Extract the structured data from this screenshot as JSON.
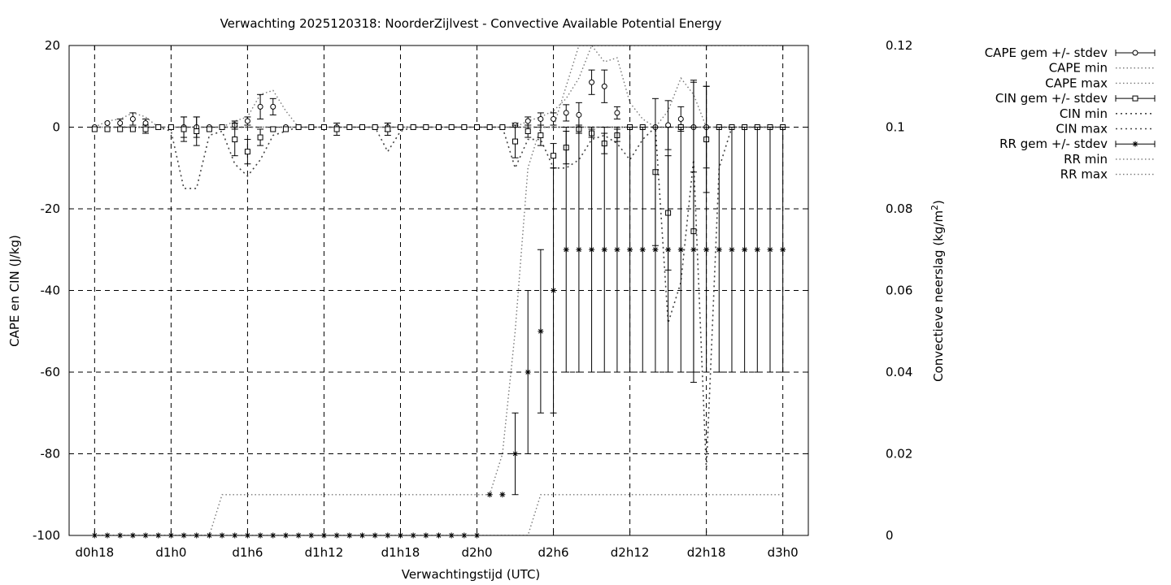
{
  "chart_data": {
    "type": "line",
    "title": "Verwachting 2025120318: NoorderZijlvest - Convective Available Potential Energy",
    "xlabel": "Verwachtingstijd (UTC)",
    "ylabel": "CAPE en CIN (J/kg)",
    "y2label_main": "Convectieve neerslag (kg/m",
    "y2label_sup": "2",
    "y2label_end": ")",
    "x_tick_labels": [
      "d0h18",
      "d1h0",
      "d1h6",
      "d1h12",
      "d1h18",
      "d2h0",
      "d2h6",
      "d2h12",
      "d2h18",
      "d3h0"
    ],
    "x_tick_hours": [
      18,
      24,
      30,
      36,
      42,
      48,
      54,
      60,
      66,
      72
    ],
    "xlim": [
      16,
      74
    ],
    "ylim": [
      -100,
      20
    ],
    "y_tick_labels": [
      "-100",
      "-80",
      "-60",
      "-40",
      "-20",
      "0",
      "20"
    ],
    "y2lim": [
      0,
      0.12
    ],
    "y2_tick_labels": [
      "0",
      "0.02",
      "0.04",
      "0.06",
      "0.08",
      "0.1",
      "0.12"
    ],
    "grid": true,
    "legend_position": "outside-right",
    "legend": [
      "CAPE gem +/- stdev",
      "CAPE min",
      "CAPE max",
      "CIN gem +/- stdev",
      "CIN min",
      "CIN max",
      "RR gem +/- stdev",
      "RR min",
      "RR max"
    ],
    "series": [
      {
        "name": "CAPE gem +/- stdev",
        "marker": "circle",
        "axis": "y1",
        "x": [
          18,
          19,
          20,
          21,
          22,
          23,
          24,
          25,
          26,
          27,
          28,
          29,
          30,
          31,
          32,
          33,
          34,
          35,
          36,
          37,
          38,
          39,
          40,
          41,
          42,
          43,
          44,
          45,
          46,
          47,
          48,
          49,
          50,
          51,
          52,
          53,
          54,
          55,
          56,
          57,
          58,
          59,
          60,
          61,
          62,
          63,
          64,
          65,
          66,
          67,
          68,
          69,
          70,
          71,
          72
        ],
        "mean": [
          0,
          1,
          1,
          2,
          1,
          0,
          0,
          0,
          0,
          0,
          0,
          0.5,
          1.5,
          5,
          5,
          0,
          0,
          0,
          0,
          0,
          0,
          0,
          0,
          0,
          0,
          0,
          0,
          0,
          0,
          0,
          0,
          0,
          0,
          0.5,
          1.5,
          2,
          2,
          3.5,
          3,
          11,
          10,
          3.5,
          0,
          0,
          0,
          0.5,
          2,
          0,
          0,
          0,
          0,
          0,
          0,
          0,
          0
        ],
        "stdev": [
          0,
          0,
          1,
          1.5,
          1,
          0,
          0,
          2.5,
          2.5,
          0,
          0,
          1,
          1,
          3,
          2,
          0,
          0,
          0,
          0,
          0,
          0,
          0,
          0,
          1,
          0,
          0,
          0,
          0,
          0,
          0,
          0,
          0,
          0,
          0.5,
          1,
          1.5,
          1.5,
          2,
          3,
          3,
          4,
          1.5,
          0,
          0,
          0,
          6,
          3,
          11,
          10,
          0,
          0,
          0,
          0,
          0,
          0
        ]
      },
      {
        "name": "CIN gem +/- stdev",
        "marker": "square",
        "axis": "y1",
        "x": [
          18,
          19,
          20,
          21,
          22,
          23,
          24,
          25,
          26,
          27,
          28,
          29,
          30,
          31,
          32,
          33,
          34,
          35,
          36,
          37,
          38,
          39,
          40,
          41,
          42,
          43,
          44,
          45,
          46,
          47,
          48,
          49,
          50,
          51,
          52,
          53,
          54,
          55,
          56,
          57,
          58,
          59,
          60,
          61,
          62,
          63,
          64,
          65,
          66,
          67,
          68,
          69,
          70,
          71,
          72
        ],
        "mean": [
          -0.5,
          -0.5,
          -0.5,
          -0.5,
          -0.5,
          0,
          0,
          -0.5,
          -1,
          -0.5,
          0,
          -3,
          -6,
          -2.5,
          -0.5,
          -0.5,
          0,
          0,
          0,
          -0.5,
          0,
          0,
          0,
          -0.5,
          0,
          0,
          0,
          0,
          0,
          0,
          0,
          0,
          0,
          -3.5,
          -1,
          -2,
          -7,
          -5,
          -0.5,
          -1.5,
          -4,
          -2,
          0,
          0,
          -11,
          -21,
          0,
          -25.5,
          -3,
          0,
          0,
          0,
          0,
          0,
          0
        ],
        "stdev": [
          0,
          0,
          0,
          0,
          1,
          0,
          0,
          3,
          3.5,
          0,
          0,
          4,
          3,
          2,
          0,
          0,
          0,
          0,
          0,
          1.5,
          0,
          0,
          0,
          1.5,
          0,
          0,
          0,
          0,
          0,
          0,
          0,
          0,
          0,
          4,
          1.5,
          2.5,
          3,
          4,
          1,
          1,
          2.5,
          1.5,
          0,
          0,
          18,
          14,
          0,
          37,
          13,
          0,
          0,
          0,
          0,
          0,
          0
        ]
      },
      {
        "name": "RR gem +/- stdev",
        "marker": "star",
        "axis": "y2",
        "x": [
          18,
          19,
          20,
          21,
          22,
          23,
          24,
          25,
          26,
          27,
          28,
          29,
          30,
          31,
          32,
          33,
          34,
          35,
          36,
          37,
          38,
          39,
          40,
          41,
          42,
          43,
          44,
          45,
          46,
          47,
          48,
          49,
          50,
          51,
          52,
          53,
          54,
          55,
          56,
          57,
          58,
          59,
          60,
          61,
          62,
          63,
          64,
          65,
          66,
          67,
          68,
          69,
          70,
          71,
          72
        ],
        "mean": [
          0,
          0,
          0,
          0,
          0,
          0,
          0,
          0,
          0,
          0,
          0,
          0,
          0,
          0,
          0,
          0,
          0,
          0,
          0,
          0,
          0,
          0,
          0,
          0,
          0,
          0,
          0,
          0,
          0,
          0,
          0,
          0.01,
          0.01,
          0.02,
          0.04,
          0.05,
          0.06,
          0.07,
          0.07,
          0.07,
          0.07,
          0.07,
          0.07,
          0.07,
          0.07,
          0.07,
          0.07,
          0.07,
          0.07,
          0.07,
          0.07,
          0.07,
          0.07,
          0.07,
          0.07
        ],
        "stdev": [
          0,
          0,
          0,
          0,
          0,
          0,
          0,
          0,
          0,
          0,
          0,
          0,
          0,
          0,
          0,
          0,
          0,
          0,
          0,
          0,
          0,
          0,
          0,
          0,
          0,
          0,
          0,
          0,
          0,
          0,
          0,
          0,
          0,
          0.01,
          0.02,
          0.02,
          0.03,
          0.03,
          0.03,
          0.03,
          0.03,
          0.03,
          0.03,
          0.03,
          0.03,
          0.03,
          0.03,
          0.03,
          0.03,
          0.03,
          0.03,
          0.03,
          0.03,
          0.03,
          0.03
        ]
      },
      {
        "name": "CAPE min",
        "axis": "y1",
        "style": "dotted",
        "x": [
          18,
          72
        ],
        "values": [
          0,
          0
        ]
      },
      {
        "name": "CAPE max",
        "axis": "y1",
        "style": "dotted",
        "x": [
          18,
          19,
          20,
          21,
          22,
          23,
          24,
          27,
          28,
          29,
          30,
          31,
          32,
          33,
          34,
          35,
          36,
          41,
          42,
          43,
          51,
          52,
          53,
          54,
          55,
          56,
          57,
          58,
          59,
          60,
          61,
          62,
          63,
          64,
          65,
          66,
          67,
          68,
          69,
          70,
          71,
          72
        ],
        "values": [
          0,
          1.5,
          2,
          3.5,
          2.5,
          0,
          0,
          0,
          0,
          1.5,
          2.5,
          8,
          9,
          4,
          0,
          0,
          0,
          0,
          0,
          0,
          0,
          1.5,
          2.5,
          4,
          7,
          12,
          20,
          16,
          17,
          6,
          2,
          0,
          4,
          12,
          8,
          0,
          0,
          0,
          0,
          0,
          0,
          0
        ]
      },
      {
        "name": "CIN min",
        "axis": "y1",
        "style": "dotted",
        "x": [
          18,
          23,
          24,
          25,
          26,
          27,
          28,
          29,
          30,
          31,
          32,
          33,
          34,
          40,
          41,
          42,
          43,
          50,
          51,
          52,
          53,
          54,
          55,
          56,
          57,
          58,
          59,
          60,
          61,
          62,
          63,
          64,
          65,
          66,
          67,
          68,
          69,
          70,
          71,
          72
        ],
        "values": [
          0,
          0,
          -1,
          -15,
          -15,
          -2,
          -1,
          -9,
          -12,
          -8,
          -2,
          -1,
          0,
          0,
          -6,
          -1,
          0,
          0,
          -10,
          -3,
          -3,
          -10,
          -10,
          -8,
          -3,
          -2,
          -4,
          -8,
          -3,
          0,
          -48,
          -38,
          -8,
          -84,
          -10,
          0,
          0,
          0,
          0,
          0
        ]
      },
      {
        "name": "CIN max",
        "axis": "y1",
        "style": "dotted",
        "x": [
          18,
          72
        ],
        "values": [
          0,
          0
        ]
      },
      {
        "name": "RR min",
        "axis": "y2",
        "style": "dotted",
        "x": [
          18,
          51,
          52,
          53,
          54,
          55,
          56,
          57,
          72
        ],
        "values": [
          0,
          0,
          0,
          0.01,
          0.01,
          0.01,
          0.01,
          0.01,
          0.01
        ]
      },
      {
        "name": "RR max",
        "axis": "y2",
        "style": "dotted",
        "x": [
          18,
          27,
          28,
          48,
          49,
          50,
          51,
          52,
          53,
          54,
          55,
          56,
          57,
          58,
          59,
          72
        ],
        "values": [
          0,
          0,
          0.01,
          0.01,
          0.01,
          0.02,
          0.05,
          0.09,
          0.1,
          0.1,
          0.11,
          0.12,
          0.12,
          0.12,
          0.12,
          0.12
        ]
      }
    ]
  }
}
